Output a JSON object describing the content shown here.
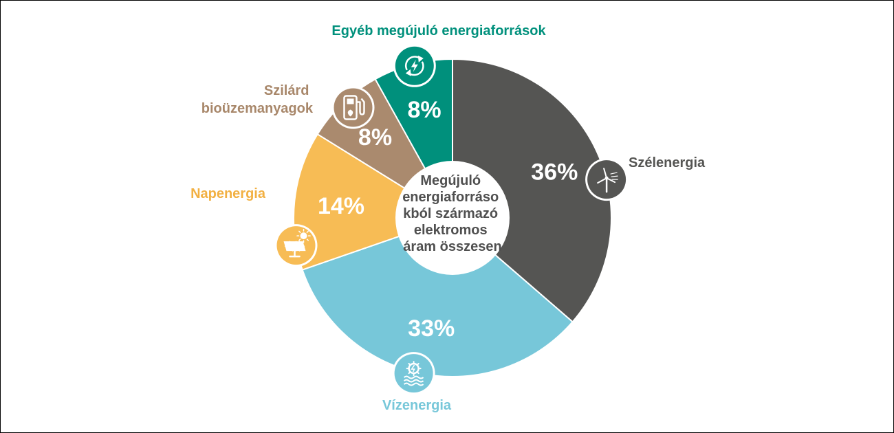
{
  "chart_data": {
    "type": "pie",
    "style": "donut",
    "center_label": [
      "Megújuló",
      "energiaforráso",
      "kból származó",
      "elektromos",
      "áram összesen"
    ],
    "slices": [
      {
        "label": "Szélenergia",
        "value": 36,
        "value_label": "36%",
        "color": "#555553",
        "label_color": "#555553",
        "icon": "wind-turbine-icon"
      },
      {
        "label": "Vízenergia",
        "value": 33,
        "value_label": "33%",
        "color": "#77c7d9",
        "label_color": "#77c7d9",
        "icon": "hydro-power-icon"
      },
      {
        "label": "Napenergia",
        "value": 14,
        "value_label": "14%",
        "color": "#f7bc55",
        "label_color": "#f2b042",
        "icon": "solar-panel-icon"
      },
      {
        "label_lines": [
          "Szilárd",
          "bioüzemanyagok"
        ],
        "value": 8,
        "value_label": "8%",
        "color": "#aa8a6e",
        "label_color": "#a8876a",
        "icon": "biofuel-pump-icon"
      },
      {
        "label": "Egyéb megújuló energiaforrások",
        "value": 8,
        "value_label": "8%",
        "color": "#00907c",
        "label_color": "#00907c",
        "icon": "renewable-cycle-icon"
      }
    ]
  }
}
